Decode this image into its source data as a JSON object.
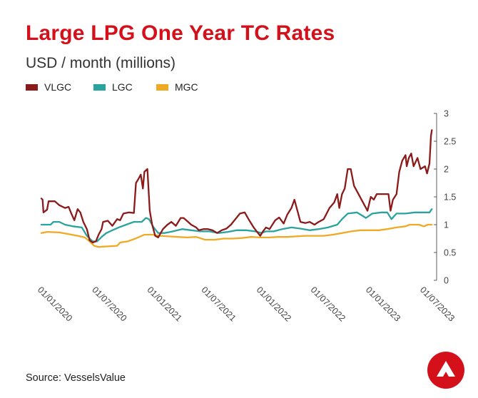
{
  "title": "Large LPG One Year TC Rates",
  "subtitle": "USD / month (millions)",
  "source": "Source: VesselsValue",
  "legend": [
    {
      "name": "VLGC",
      "color": "#8b1a1a"
    },
    {
      "name": "LGC",
      "color": "#2aa39e"
    },
    {
      "name": "MGC",
      "color": "#f0a922"
    }
  ],
  "logo": {
    "name": "vesselsvalue-logo-icon",
    "color": "#d4111b"
  },
  "chart_data": {
    "type": "line",
    "xlabel": "",
    "ylabel": "",
    "ylim": [
      0,
      3
    ],
    "yticks": [
      "0",
      "0.5",
      "1",
      "1.5",
      "2",
      "2.5",
      "3"
    ],
    "y_axis_position": "right",
    "grid": false,
    "xlim": [
      "2020-01-01",
      "2023-08-01"
    ],
    "xticks": [
      "01/01/2020",
      "01/07/2020",
      "01/01/2021",
      "01/07/2021",
      "01/01/2022",
      "01/07/2022",
      "01/01/2023",
      "01/07/2023"
    ],
    "series": [
      {
        "name": "VLGC",
        "color": "#8b1a1a",
        "points": [
          [
            "2020-01-01",
            1.47
          ],
          [
            "2020-01-05",
            1.45
          ],
          [
            "2020-01-08",
            1.22
          ],
          [
            "2020-01-20",
            1.27
          ],
          [
            "2020-01-25",
            1.42
          ],
          [
            "2020-02-15",
            1.42
          ],
          [
            "2020-03-01",
            1.35
          ],
          [
            "2020-03-20",
            1.3
          ],
          [
            "2020-04-01",
            1.32
          ],
          [
            "2020-04-10",
            1.2
          ],
          [
            "2020-04-20",
            1.08
          ],
          [
            "2020-05-01",
            1.28
          ],
          [
            "2020-05-10",
            1.22
          ],
          [
            "2020-05-20",
            1.05
          ],
          [
            "2020-06-01",
            0.92
          ],
          [
            "2020-06-10",
            0.72
          ],
          [
            "2020-06-20",
            0.68
          ],
          [
            "2020-07-01",
            0.7
          ],
          [
            "2020-07-10",
            0.82
          ],
          [
            "2020-07-20",
            0.92
          ],
          [
            "2020-07-25",
            1.05
          ],
          [
            "2020-08-10",
            1.07
          ],
          [
            "2020-08-25",
            0.98
          ],
          [
            "2020-09-10",
            1.1
          ],
          [
            "2020-09-20",
            1.08
          ],
          [
            "2020-10-01",
            1.2
          ],
          [
            "2020-10-20",
            1.22
          ],
          [
            "2020-11-05",
            1.21
          ],
          [
            "2020-11-12",
            1.75
          ],
          [
            "2020-11-20",
            1.82
          ],
          [
            "2020-11-28",
            1.9
          ],
          [
            "2020-12-05",
            1.65
          ],
          [
            "2020-12-10",
            1.95
          ],
          [
            "2020-12-20",
            2.0
          ],
          [
            "2020-12-28",
            1.25
          ],
          [
            "2021-01-05",
            1.0
          ],
          [
            "2021-01-15",
            0.8
          ],
          [
            "2021-01-25",
            0.77
          ],
          [
            "2021-02-10",
            0.92
          ],
          [
            "2021-02-25",
            1.0
          ],
          [
            "2021-03-10",
            1.05
          ],
          [
            "2021-03-25",
            0.98
          ],
          [
            "2021-04-10",
            1.12
          ],
          [
            "2021-04-20",
            1.12
          ],
          [
            "2021-05-05",
            1.05
          ],
          [
            "2021-05-15",
            1.0
          ],
          [
            "2021-06-01",
            0.95
          ],
          [
            "2021-06-10",
            0.9
          ],
          [
            "2021-06-25",
            0.92
          ],
          [
            "2021-07-10",
            0.92
          ],
          [
            "2021-07-25",
            0.9
          ],
          [
            "2021-08-10",
            0.85
          ],
          [
            "2021-08-25",
            0.9
          ],
          [
            "2021-09-10",
            0.93
          ],
          [
            "2021-09-25",
            1.0
          ],
          [
            "2021-10-10",
            1.1
          ],
          [
            "2021-10-25",
            1.2
          ],
          [
            "2021-11-10",
            1.22
          ],
          [
            "2021-11-25",
            1.08
          ],
          [
            "2021-12-10",
            0.95
          ],
          [
            "2021-12-20",
            0.88
          ],
          [
            "2022-01-01",
            0.8
          ],
          [
            "2022-01-10",
            0.88
          ],
          [
            "2022-01-20",
            0.95
          ],
          [
            "2022-02-01",
            0.92
          ],
          [
            "2022-02-20",
            1.08
          ],
          [
            "2022-03-05",
            1.13
          ],
          [
            "2022-03-20",
            1.02
          ],
          [
            "2022-04-01",
            1.18
          ],
          [
            "2022-04-15",
            1.3
          ],
          [
            "2022-04-25",
            1.45
          ],
          [
            "2022-05-05",
            1.25
          ],
          [
            "2022-05-15",
            1.05
          ],
          [
            "2022-06-01",
            1.03
          ],
          [
            "2022-06-15",
            1.05
          ],
          [
            "2022-07-01",
            1.0
          ],
          [
            "2022-07-15",
            1.05
          ],
          [
            "2022-08-01",
            1.1
          ],
          [
            "2022-08-20",
            1.3
          ],
          [
            "2022-09-05",
            1.4
          ],
          [
            "2022-09-15",
            1.55
          ],
          [
            "2022-09-22",
            1.3
          ],
          [
            "2022-10-01",
            1.55
          ],
          [
            "2022-10-10",
            1.65
          ],
          [
            "2022-10-20",
            2.0
          ],
          [
            "2022-10-30",
            2.0
          ],
          [
            "2022-11-10",
            1.7
          ],
          [
            "2022-11-25",
            1.55
          ],
          [
            "2022-12-10",
            1.4
          ],
          [
            "2022-12-25",
            1.25
          ],
          [
            "2023-01-05",
            1.5
          ],
          [
            "2023-01-15",
            1.45
          ],
          [
            "2023-01-25",
            1.55
          ],
          [
            "2023-02-15",
            1.55
          ],
          [
            "2023-03-05",
            1.55
          ],
          [
            "2023-03-12",
            1.25
          ],
          [
            "2023-03-20",
            1.45
          ],
          [
            "2023-04-01",
            1.55
          ],
          [
            "2023-04-10",
            1.95
          ],
          [
            "2023-04-20",
            2.15
          ],
          [
            "2023-05-01",
            2.25
          ],
          [
            "2023-05-05",
            2.05
          ],
          [
            "2023-05-12",
            2.2
          ],
          [
            "2023-05-20",
            2.28
          ],
          [
            "2023-05-28",
            2.05
          ],
          [
            "2023-06-10",
            2.2
          ],
          [
            "2023-06-20",
            2.0
          ],
          [
            "2023-07-05",
            2.05
          ],
          [
            "2023-07-12",
            1.92
          ],
          [
            "2023-07-20",
            2.1
          ],
          [
            "2023-07-25",
            2.6
          ],
          [
            "2023-07-28",
            2.7
          ]
        ]
      },
      {
        "name": "LGC",
        "color": "#2aa39e",
        "points": [
          [
            "2020-01-01",
            1.0
          ],
          [
            "2020-02-01",
            1.0
          ],
          [
            "2020-02-10",
            1.05
          ],
          [
            "2020-03-01",
            1.05
          ],
          [
            "2020-03-20",
            1.0
          ],
          [
            "2020-04-15",
            0.97
          ],
          [
            "2020-05-15",
            0.95
          ],
          [
            "2020-06-01",
            0.8
          ],
          [
            "2020-06-20",
            0.7
          ],
          [
            "2020-07-05",
            0.7
          ],
          [
            "2020-07-20",
            0.78
          ],
          [
            "2020-08-05",
            0.85
          ],
          [
            "2020-08-25",
            0.9
          ],
          [
            "2020-09-15",
            0.95
          ],
          [
            "2020-10-10",
            1.0
          ],
          [
            "2020-11-05",
            1.05
          ],
          [
            "2020-12-01",
            1.05
          ],
          [
            "2020-12-15",
            1.12
          ],
          [
            "2020-12-25",
            1.1
          ],
          [
            "2021-01-10",
            0.95
          ],
          [
            "2021-01-25",
            0.85
          ],
          [
            "2021-02-15",
            0.85
          ],
          [
            "2021-03-15",
            0.88
          ],
          [
            "2021-04-15",
            0.92
          ],
          [
            "2021-05-15",
            0.9
          ],
          [
            "2021-06-15",
            0.88
          ],
          [
            "2021-07-15",
            0.88
          ],
          [
            "2021-08-15",
            0.85
          ],
          [
            "2021-09-15",
            0.87
          ],
          [
            "2021-10-15",
            0.9
          ],
          [
            "2021-11-15",
            0.9
          ],
          [
            "2021-12-15",
            0.88
          ],
          [
            "2022-01-05",
            0.85
          ],
          [
            "2022-01-20",
            0.88
          ],
          [
            "2022-02-15",
            0.88
          ],
          [
            "2022-03-15",
            0.92
          ],
          [
            "2022-04-15",
            0.95
          ],
          [
            "2022-05-15",
            0.93
          ],
          [
            "2022-06-15",
            0.9
          ],
          [
            "2022-07-15",
            0.92
          ],
          [
            "2022-08-15",
            0.95
          ],
          [
            "2022-09-15",
            1.0
          ],
          [
            "2022-10-01",
            1.1
          ],
          [
            "2022-10-20",
            1.2
          ],
          [
            "2022-11-20",
            1.22
          ],
          [
            "2022-12-20",
            1.12
          ],
          [
            "2023-01-10",
            1.2
          ],
          [
            "2023-02-10",
            1.22
          ],
          [
            "2023-03-01",
            1.22
          ],
          [
            "2023-03-15",
            1.1
          ],
          [
            "2023-04-01",
            1.2
          ],
          [
            "2023-05-01",
            1.2
          ],
          [
            "2023-06-01",
            1.22
          ],
          [
            "2023-07-01",
            1.22
          ],
          [
            "2023-07-20",
            1.22
          ],
          [
            "2023-07-28",
            1.28
          ]
        ]
      },
      {
        "name": "MGC",
        "color": "#f0a922",
        "points": [
          [
            "2020-01-01",
            0.85
          ],
          [
            "2020-01-20",
            0.87
          ],
          [
            "2020-03-01",
            0.86
          ],
          [
            "2020-04-01",
            0.83
          ],
          [
            "2020-05-01",
            0.8
          ],
          [
            "2020-05-25",
            0.77
          ],
          [
            "2020-06-10",
            0.7
          ],
          [
            "2020-06-25",
            0.62
          ],
          [
            "2020-07-10",
            0.6
          ],
          [
            "2020-08-10",
            0.61
          ],
          [
            "2020-09-10",
            0.62
          ],
          [
            "2020-09-20",
            0.68
          ],
          [
            "2020-10-15",
            0.7
          ],
          [
            "2020-11-10",
            0.75
          ],
          [
            "2020-12-10",
            0.82
          ],
          [
            "2021-01-05",
            0.82
          ],
          [
            "2021-02-01",
            0.8
          ],
          [
            "2021-03-01",
            0.79
          ],
          [
            "2021-04-01",
            0.78
          ],
          [
            "2021-05-01",
            0.77
          ],
          [
            "2021-06-01",
            0.78
          ],
          [
            "2021-07-01",
            0.73
          ],
          [
            "2021-08-01",
            0.73
          ],
          [
            "2021-09-01",
            0.75
          ],
          [
            "2021-10-01",
            0.75
          ],
          [
            "2021-11-01",
            0.76
          ],
          [
            "2021-12-01",
            0.78
          ],
          [
            "2022-01-01",
            0.77
          ],
          [
            "2022-02-01",
            0.77
          ],
          [
            "2022-03-01",
            0.78
          ],
          [
            "2022-04-01",
            0.78
          ],
          [
            "2022-05-01",
            0.79
          ],
          [
            "2022-06-01",
            0.8
          ],
          [
            "2022-07-01",
            0.8
          ],
          [
            "2022-08-01",
            0.8
          ],
          [
            "2022-09-01",
            0.82
          ],
          [
            "2022-10-01",
            0.85
          ],
          [
            "2022-11-01",
            0.88
          ],
          [
            "2022-12-01",
            0.9
          ],
          [
            "2023-01-01",
            0.9
          ],
          [
            "2023-02-01",
            0.9
          ],
          [
            "2023-03-01",
            0.92
          ],
          [
            "2023-04-01",
            0.95
          ],
          [
            "2023-05-01",
            0.97
          ],
          [
            "2023-05-15",
            1.0
          ],
          [
            "2023-06-15",
            1.0
          ],
          [
            "2023-07-01",
            0.97
          ],
          [
            "2023-07-15",
            1.0
          ],
          [
            "2023-07-28",
            1.0
          ]
        ]
      }
    ]
  }
}
